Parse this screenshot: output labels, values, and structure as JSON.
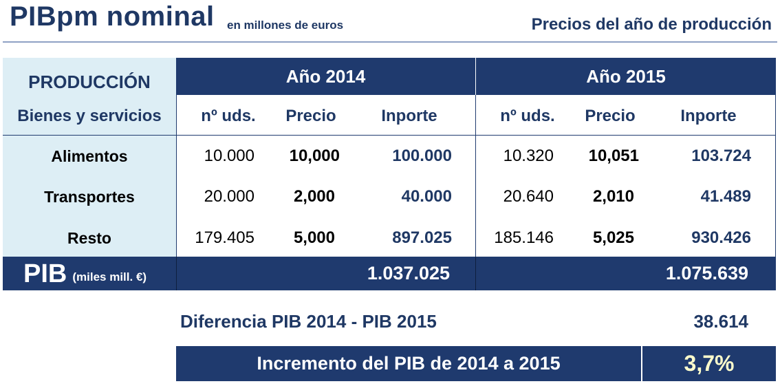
{
  "header": {
    "title": "PIBpm nominal",
    "subtitle": "en millones de euros",
    "right_title": "Precios del año de producción"
  },
  "table": {
    "row_header_line1": "PRODUCCIÓN",
    "row_header_line2": "Bienes y servicios",
    "years": [
      "Año 2014",
      "Año 2015"
    ],
    "columns": [
      "nº uds.",
      "Precio",
      "Inporte"
    ],
    "rows": [
      {
        "label": "Alimentos",
        "y2014": [
          "10.000",
          "10,000",
          "100.000"
        ],
        "y2015": [
          "10.320",
          "10,051",
          "103.724"
        ]
      },
      {
        "label": "Transportes",
        "y2014": [
          "20.000",
          "2,000",
          "40.000"
        ],
        "y2015": [
          "20.640",
          "2,010",
          "41.489"
        ]
      },
      {
        "label": "Resto",
        "y2014": [
          "179.405",
          "5,000",
          "897.025"
        ],
        "y2015": [
          "185.146",
          "5,025",
          "930.426"
        ]
      }
    ],
    "total_label": "PIB",
    "total_unit": "(miles mill. €)",
    "total_2014": "1.037.025",
    "total_2015": "1.075.639"
  },
  "summary": {
    "diff_label": "Diferencia PIB 2014 - PIB 2015",
    "diff_value": "38.614",
    "increment_label": "Incremento del PIB de 2014 a 2015",
    "increment_value": "3,7%"
  }
}
